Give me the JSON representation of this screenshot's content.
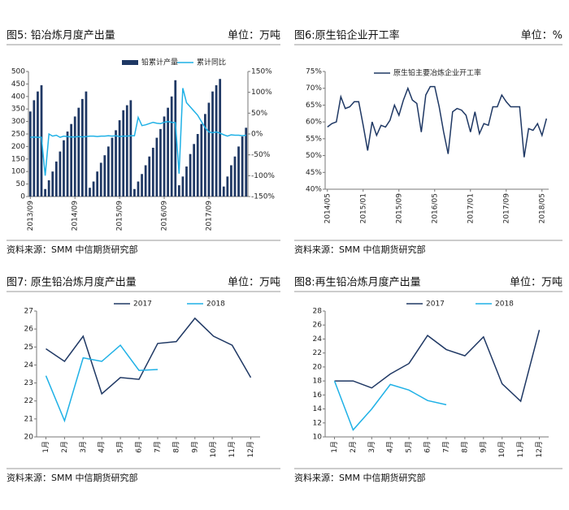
{
  "chart_data": [
    {
      "type": "bar",
      "title": "图5: 铅冶炼月度产出量",
      "unit": "单位：万吨",
      "source": "资料来源：SMM 中信期货研究部",
      "categories": [
        "2013/09",
        null,
        null,
        null,
        null,
        null,
        null,
        null,
        null,
        null,
        null,
        null,
        "2014/09",
        null,
        null,
        null,
        null,
        null,
        null,
        null,
        null,
        null,
        null,
        null,
        "2015/09",
        null,
        null,
        null,
        null,
        null,
        null,
        null,
        null,
        null,
        null,
        null,
        "2016/09",
        null,
        null,
        null,
        null,
        null,
        null,
        null,
        null,
        null,
        null,
        null,
        "2017/09",
        null,
        null,
        null,
        null,
        null,
        null,
        null,
        null,
        null,
        null
      ],
      "series": [
        {
          "name": "铅累计产量",
          "type": "bar",
          "color": "#1f3864",
          "values": [
            340,
            385,
            420,
            445,
            30,
            65,
            100,
            140,
            180,
            225,
            260,
            290,
            320,
            355,
            390,
            420,
            35,
            60,
            100,
            135,
            165,
            200,
            235,
            265,
            305,
            345,
            365,
            385,
            30,
            60,
            90,
            125,
            160,
            195,
            235,
            270,
            320,
            355,
            400,
            465,
            45,
            80,
            120,
            170,
            210,
            250,
            290,
            330,
            375,
            420,
            445,
            470,
            40,
            80,
            125,
            160,
            200,
            240,
            275
          ]
        },
        {
          "name": "累计同比",
          "type": "line",
          "axis": "y2",
          "color": "#1fb1e6",
          "values": [
            -8,
            -7,
            -8,
            -8,
            -100,
            0,
            -5,
            -3,
            -8,
            -5,
            -6,
            -7,
            -7,
            -6,
            -7,
            -6,
            -5,
            -5,
            -6,
            -5,
            -5,
            -4,
            -5,
            -4,
            -6,
            -5,
            -5,
            -4,
            -4,
            40,
            20,
            22,
            25,
            28,
            26,
            25,
            28,
            30,
            28,
            27,
            -95,
            110,
            75,
            65,
            55,
            45,
            30,
            15,
            5,
            3,
            5,
            2,
            -2,
            -5,
            -2,
            -3,
            -3,
            -4,
            -3
          ]
        }
      ],
      "ylim": [
        0,
        500
      ],
      "yticks": [
        0,
        50,
        100,
        150,
        200,
        250,
        300,
        350,
        400,
        450,
        500
      ],
      "y2lim": [
        -150,
        150
      ],
      "y2ticks": [
        {
          "value": -150,
          "label": "-150%"
        },
        {
          "value": -100,
          "label": "-100%"
        },
        {
          "value": -50,
          "label": "-50%"
        },
        {
          "value": 0,
          "label": "0%"
        },
        {
          "value": 50,
          "label": "50%"
        },
        {
          "value": 100,
          "label": "100%"
        },
        {
          "value": 150,
          "label": "150%"
        }
      ],
      "grid": false
    },
    {
      "type": "line",
      "title": "图6:原生铅企业开工率",
      "unit": "单位：%",
      "source": "资料来源：SMM 中信期货研究部",
      "categories": [
        "2014/05",
        null,
        null,
        null,
        null,
        null,
        null,
        null,
        "2015/01",
        null,
        null,
        null,
        null,
        null,
        null,
        null,
        "2015/09",
        null,
        null,
        null,
        null,
        null,
        null,
        null,
        "2016/05",
        null,
        null,
        null,
        null,
        null,
        null,
        null,
        "2017/01",
        null,
        null,
        null,
        null,
        null,
        null,
        null,
        "2017/09",
        null,
        null,
        null,
        null,
        null,
        null,
        null,
        "2018/05",
        null
      ],
      "series": [
        {
          "name": "原生铅主要冶炼企业开工率",
          "color": "#1f3864",
          "values": [
            58.5,
            59.5,
            60,
            67.5,
            64,
            64.5,
            66,
            66,
            59,
            51.5,
            60,
            56,
            59,
            58.5,
            60.5,
            65,
            62,
            66.5,
            70,
            66.5,
            65.5,
            57,
            68,
            70.5,
            70.5,
            64.5,
            57,
            50.5,
            63,
            64,
            63.5,
            62,
            57,
            63,
            56.5,
            59.5,
            59,
            64.5,
            64.5,
            68,
            66,
            64.5,
            64.5,
            64.5,
            49.5,
            58,
            57.5,
            59.5,
            56,
            61
          ]
        }
      ],
      "ylim": [
        40,
        75
      ],
      "yticks": [
        {
          "value": 40,
          "label": "40%"
        },
        {
          "value": 45,
          "label": "45%"
        },
        {
          "value": 50,
          "label": "50%"
        },
        {
          "value": 55,
          "label": "55%"
        },
        {
          "value": 60,
          "label": "60%"
        },
        {
          "value": 65,
          "label": "65%"
        },
        {
          "value": 70,
          "label": "70%"
        },
        {
          "value": 75,
          "label": "75%"
        }
      ],
      "grid": false
    },
    {
      "type": "line",
      "title": "图7: 原生铅冶炼月度产出量",
      "unit": "单位：万吨",
      "source": "资料来源：SMM 中信期货研究部",
      "categories": [
        "1月",
        "2月",
        "3月",
        "4月",
        "5月",
        "6月",
        "7月",
        "8月",
        "9月",
        "10月",
        "11月",
        "12月"
      ],
      "series": [
        {
          "name": "2017",
          "color": "#1f3864",
          "values": [
            24.9,
            24.2,
            25.6,
            22.4,
            23.3,
            23.2,
            25.2,
            25.3,
            26.6,
            25.6,
            25.1,
            23.3
          ]
        },
        {
          "name": "2018",
          "color": "#1fb1e6",
          "values": [
            23.4,
            20.9,
            24.4,
            24.2,
            25.1,
            23.7,
            23.75,
            null,
            null,
            null,
            null,
            null
          ]
        }
      ],
      "ylim": [
        20,
        27
      ],
      "yticks": [
        20,
        21,
        22,
        23,
        24,
        25,
        26,
        27
      ],
      "grid": false
    },
    {
      "type": "line",
      "title": "图8:再生铅冶炼月度产出量",
      "unit": "单位：万吨",
      "source": "资料来源：SMM 中信期货研究部",
      "categories": [
        "1月",
        "2月",
        "3月",
        "4月",
        "5月",
        "6月",
        "7月",
        "8月",
        "9月",
        "10月",
        "11月",
        "12月"
      ],
      "series": [
        {
          "name": "2017",
          "color": "#1f3864",
          "values": [
            18,
            18,
            17,
            19,
            20.5,
            24.5,
            22.5,
            21.6,
            24.3,
            17.6,
            15.1,
            25.3
          ]
        },
        {
          "name": "2018",
          "color": "#1fb1e6",
          "values": [
            18,
            11,
            14,
            17.5,
            16.7,
            15.2,
            14.6,
            null,
            null,
            null,
            null,
            null
          ]
        }
      ],
      "ylim": [
        10,
        28
      ],
      "yticks": [
        10,
        12,
        14,
        16,
        18,
        20,
        22,
        24,
        26,
        28
      ],
      "grid": false
    }
  ]
}
